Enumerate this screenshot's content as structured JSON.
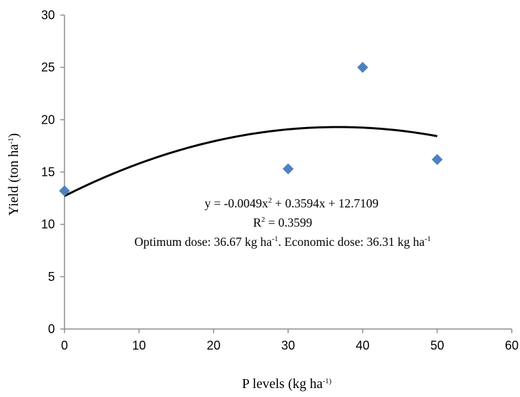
{
  "chart_data": {
    "type": "scatter",
    "xlabel": {
      "text": "P levels (kg ha",
      "sup": "-1)",
      "suffix": ""
    },
    "ylabel": {
      "text": "Yield (ton ha",
      "sup": "-1",
      "suffix": ")"
    },
    "xlim": [
      0,
      60
    ],
    "ylim": [
      0,
      30
    ],
    "xticks": [
      "0",
      "10",
      "20",
      "30",
      "40",
      "50",
      "60"
    ],
    "yticks": [
      "0",
      "5",
      "10",
      "15",
      "20",
      "25",
      "30"
    ],
    "grid": false,
    "legend": "none",
    "series": [
      {
        "marker": "diamond",
        "color": "#4f81bd",
        "x": [
          0,
          30,
          40,
          50
        ],
        "y": [
          13.2,
          15.3,
          25.0,
          16.2
        ]
      }
    ],
    "trendline": {
      "type": "polynomial",
      "coefficients": {
        "a": -0.0049,
        "b": 0.3594,
        "c": 12.7109
      },
      "x_range": [
        0,
        50
      ],
      "color": "#000000"
    },
    "annotations": {
      "equation": {
        "part1": "y = -0.0049x",
        "sup": "2",
        "part2": " + 0.3594x + 12.7109"
      },
      "r2": {
        "part1": "R",
        "sup": "2",
        "part2": " = 0.3599"
      },
      "doses": {
        "part1": "Optimum dose: 36.67 kg ha",
        "sup1": "-1",
        "part2": ". Economic dose: 36.31 kg ha",
        "sup2": "-1"
      }
    }
  }
}
